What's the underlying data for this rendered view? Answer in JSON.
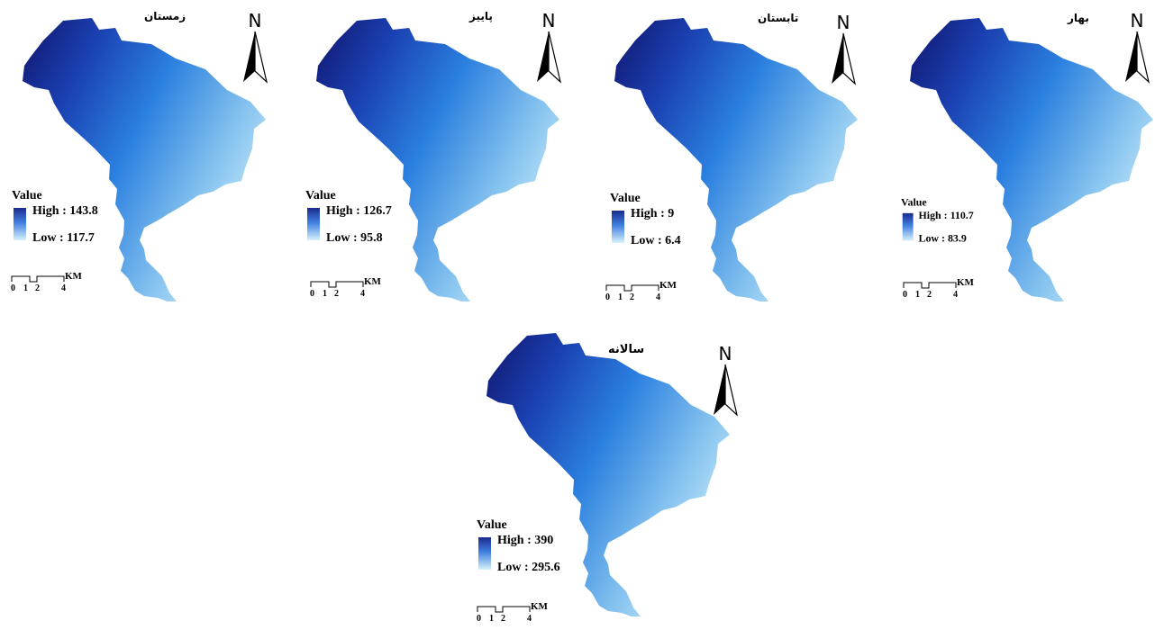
{
  "colors": {
    "high": "#1b2a8c",
    "mid": "#2f7fe0",
    "low": "#d8f2fb"
  },
  "north_label": "N",
  "legend_title": "Value",
  "scale": {
    "unit": "KM",
    "ticks": [
      "0",
      "1",
      "2",
      "4"
    ]
  },
  "maps": [
    {
      "title": "زمستان",
      "high": "High : 143.8",
      "low": "Low : 117.7"
    },
    {
      "title": "پاییز",
      "high": "High : 126.7",
      "low": "Low : 95.8"
    },
    {
      "title": "تابستان",
      "high": "High : 9",
      "low": "Low : 6.4"
    },
    {
      "title": "بهار",
      "high": "High : 110.7",
      "low": "Low : 83.9"
    },
    {
      "title": "سالانه",
      "high": "High : 390",
      "low": "Low : 295.6"
    }
  ]
}
